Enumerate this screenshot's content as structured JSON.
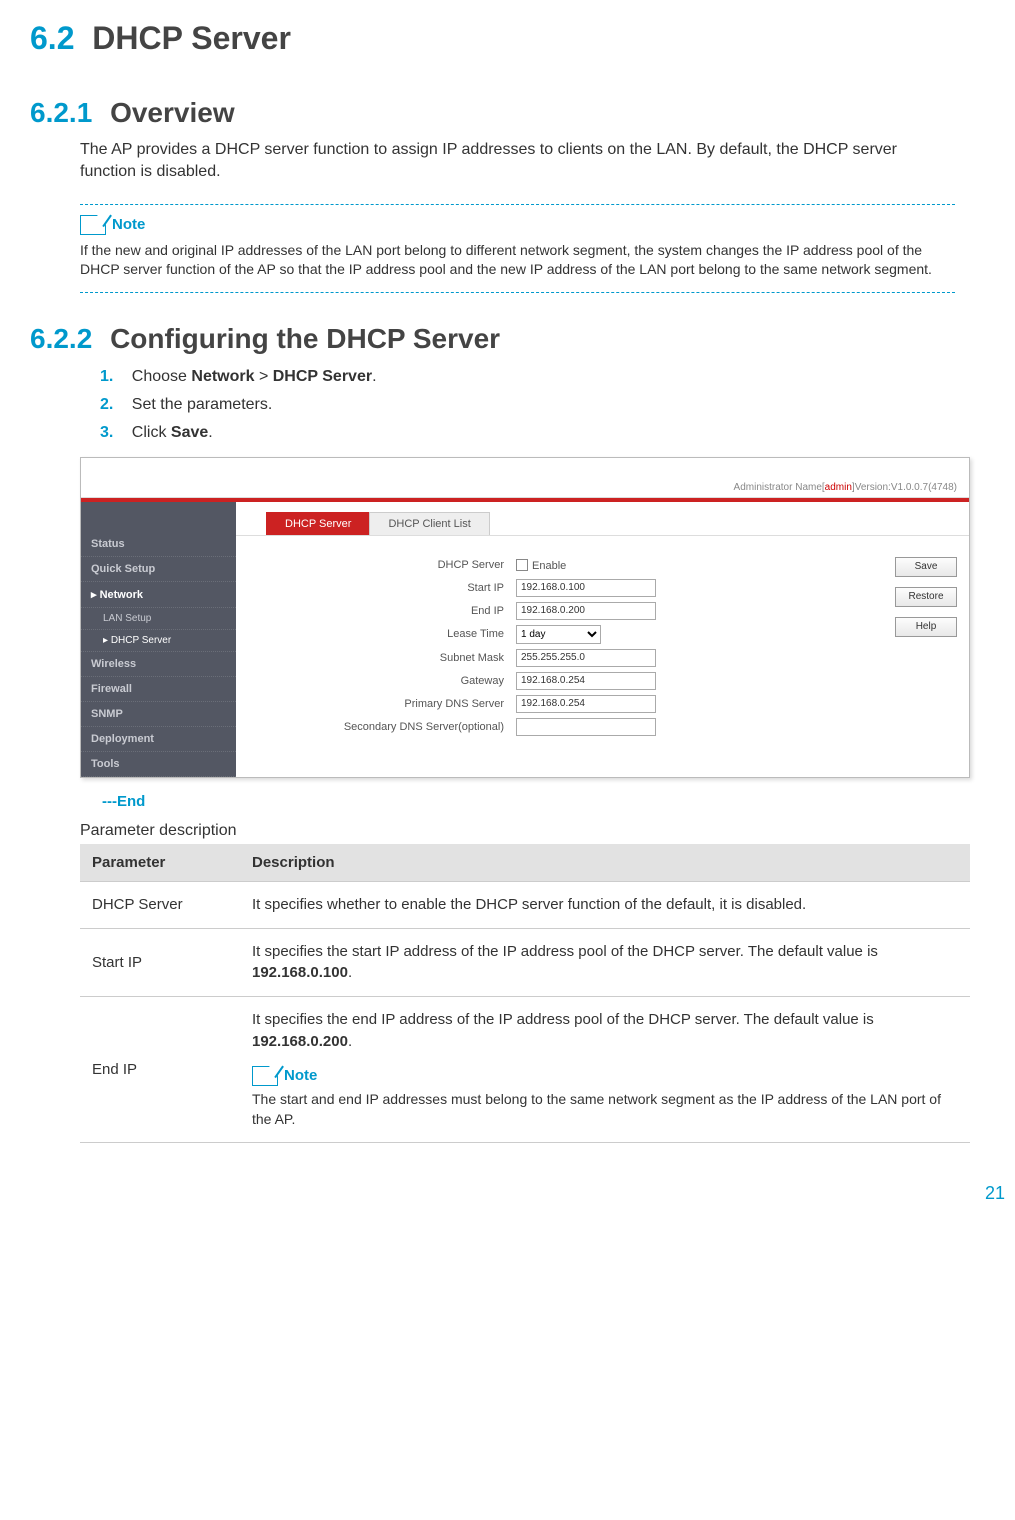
{
  "colors": {
    "accent": "#0099cc",
    "headerGray": "#444",
    "redbar": "#c22",
    "sidebarBg": "#535763"
  },
  "headings": {
    "h1_num": "6.2",
    "h1_txt": "DHCP Server",
    "h2a_num": "6.2.1",
    "h2a_txt": "Overview",
    "h2b_num": "6.2.2",
    "h2b_txt": "Configuring the DHCP Server"
  },
  "overview_text": "The AP provides a DHCP server function to assign IP addresses to clients on the LAN. By default, the DHCP server function is disabled.",
  "note1": {
    "label": "Note",
    "text": "If the new and original IP addresses of the LAN port belong to different network segment, the system changes the IP address pool of the DHCP server function of the AP so that the IP address pool and the new IP address of the LAN port belong to the same network segment."
  },
  "steps": [
    {
      "n": "1.",
      "pre": "Choose ",
      "b1": "Network",
      "mid": " > ",
      "b2": "DHCP Server",
      "post": "."
    },
    {
      "n": "2.",
      "pre": "Set the parameters.",
      "b1": "",
      "mid": "",
      "b2": "",
      "post": ""
    },
    {
      "n": "3.",
      "pre": "Click ",
      "b1": "Save",
      "mid": "",
      "b2": "",
      "post": "."
    }
  ],
  "screenshot": {
    "admin_prefix": "Administrator Name[",
    "admin_name": "admin",
    "admin_suffix": "]Version:V1.0.0.7(4748)",
    "sidebar": [
      "Status",
      "Quick Setup",
      "Network",
      "LAN Setup",
      "DHCP Server",
      "Wireless",
      "Firewall",
      "SNMP",
      "Deployment",
      "Tools"
    ],
    "tabs": {
      "active": "DHCP Server",
      "other": "DHCP Client List"
    },
    "form": {
      "dhcp_label": "DHCP Server",
      "enable_label": "Enable",
      "start_ip_label": "Start IP",
      "start_ip": "192.168.0.100",
      "end_ip_label": "End IP",
      "end_ip": "192.168.0.200",
      "lease_label": "Lease Time",
      "lease": "1 day",
      "mask_label": "Subnet Mask",
      "mask": "255.255.255.0",
      "gw_label": "Gateway",
      "gw": "192.168.0.254",
      "dns1_label": "Primary DNS Server",
      "dns1": "192.168.0.254",
      "dns2_label": "Secondary DNS Server(optional)",
      "dns2": ""
    },
    "buttons": {
      "save": "Save",
      "restore": "Restore",
      "help": "Help"
    }
  },
  "end_marker": "---End",
  "param_table": {
    "title": "Parameter description",
    "col1": "Parameter",
    "col2": "Description",
    "rows": [
      {
        "p": "DHCP Server",
        "d": "It specifies whether to enable the DHCP server function of the default, it is disabled."
      },
      {
        "p": "Start IP",
        "d_pre": "It specifies the start IP address of the IP address pool of the DHCP server. The default value is ",
        "d_bold": "192.168.0.100",
        "d_post": "."
      },
      {
        "p": "End IP",
        "d_pre": "It specifies the end IP address of the IP address pool of the DHCP server. The default value is ",
        "d_bold": "192.168.0.200",
        "d_post": ".",
        "note_label": "Note",
        "note_text": "The start and end IP addresses must belong to the same network segment as the IP address of the LAN port of the AP."
      }
    ]
  },
  "page_number": "21"
}
